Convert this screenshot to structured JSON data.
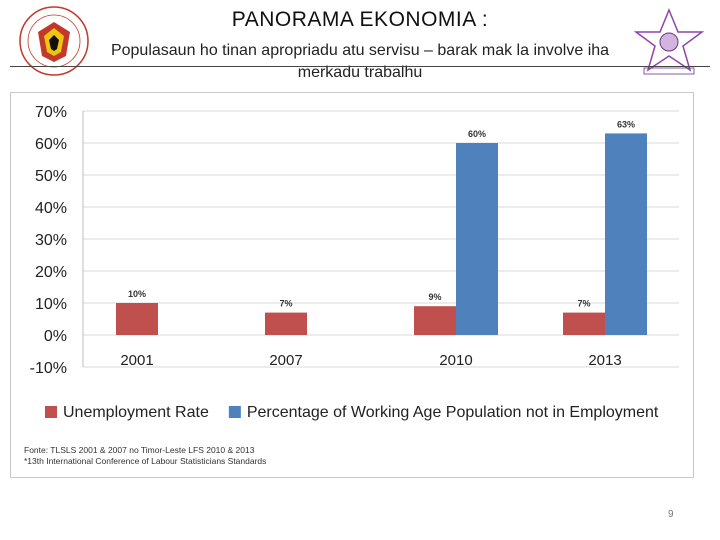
{
  "slide": {
    "title": "PANORAMA EKONOMIA :",
    "subtitle": "Populasaun ho tinan apropriadu atu servisu – barak mak la involve iha merkadu trabalhu",
    "source_line1": "Fonte: TLSLS 2001 & 2007 no Timor-Leste LFS 2010 & 2013",
    "source_line2": "*13th International Conference of Labour Statisticians Standards",
    "page_number": "9"
  },
  "colors": {
    "unemployment": "#c0504d",
    "not_employed": "#4f81bd",
    "grid": "#d9d9d9",
    "axis_text": "#222222"
  },
  "chart_data": {
    "type": "bar",
    "categories": [
      "2001",
      "2007",
      "2010",
      "2013"
    ],
    "series": [
      {
        "name": "Unemployment Rate",
        "values": [
          10,
          7,
          9,
          7
        ],
        "labels": [
          "10%",
          "7%",
          "9%",
          "7%"
        ]
      },
      {
        "name": "Percentage of Working Age Population not in Employment",
        "values": [
          null,
          null,
          60,
          63
        ],
        "labels": [
          "",
          "",
          "60%",
          "63%"
        ]
      }
    ],
    "yticks": [
      "70%",
      "60%",
      "50%",
      "40%",
      "30%",
      "20%",
      "10%",
      "0%",
      "-10%"
    ],
    "ylim": [
      -10,
      70
    ],
    "grid": true,
    "legend": "bottom"
  }
}
